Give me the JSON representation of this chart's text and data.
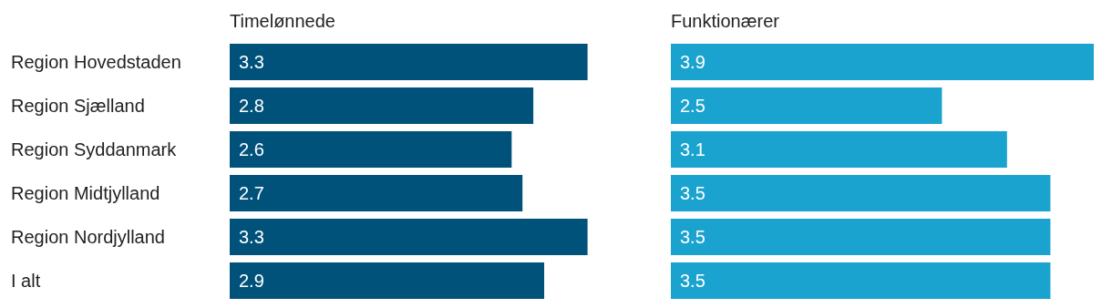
{
  "chart_data": [
    {
      "type": "bar",
      "orientation": "horizontal",
      "title": "Timelønnede",
      "categories": [
        "Region Hovedstaden",
        "Region Sjælland",
        "Region Syddanmark",
        "Region Midtjylland",
        "Region Nordjylland",
        "I alt"
      ],
      "values": [
        3.3,
        2.8,
        2.6,
        2.7,
        3.3,
        2.9
      ],
      "color": "#00527a",
      "data_labels": true,
      "tick_labels": "y"
    },
    {
      "type": "bar",
      "orientation": "horizontal",
      "title": "Funktionærer",
      "categories": [
        null,
        null,
        null,
        null,
        null,
        null
      ],
      "values": [
        3.9,
        2.5,
        3.1,
        3.5,
        3.5,
        3.5
      ],
      "color": "#1ba3cf",
      "data_labels": true,
      "tick_labels": false
    }
  ]
}
